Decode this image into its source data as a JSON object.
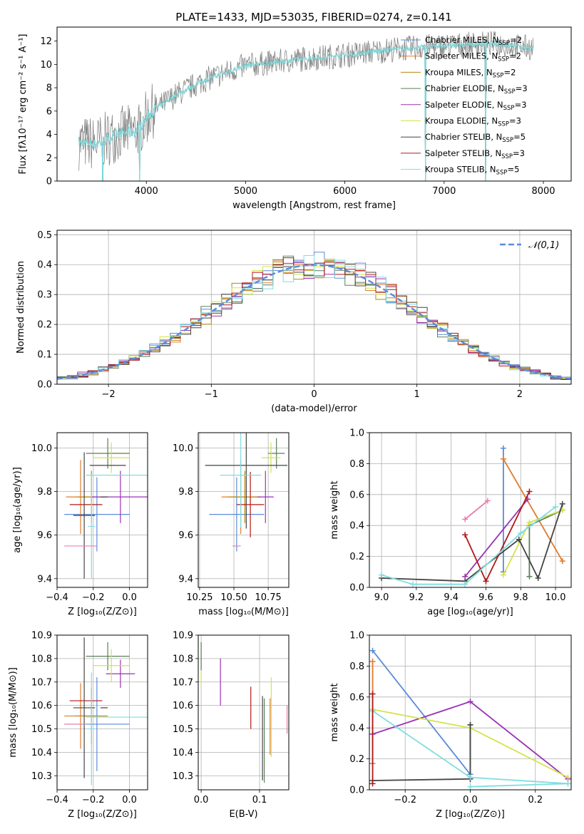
{
  "figure_title": "PLATE=1433, MJD=53035, FIBERID=0274, z=0.141",
  "legend_models": [
    {
      "label": "Chabrier MILES, N",
      "sub": "SSP",
      "suffix": "=2",
      "color": "#5b8bd9"
    },
    {
      "label": "Salpeter MILES, N",
      "sub": "SSP",
      "suffix": "=2",
      "color": "#e07b2a"
    },
    {
      "label": "Kroupa MILES, N",
      "sub": "SSP",
      "suffix": "=2",
      "color": "#b8860b"
    },
    {
      "label": "Chabrier ELODIE, N",
      "sub": "SSP",
      "suffix": "=3",
      "color": "#5a7f5a"
    },
    {
      "label": "Salpeter ELODIE, N",
      "sub": "SSP",
      "suffix": "=3",
      "color": "#9a32b5"
    },
    {
      "label": "Kroupa ELODIE, N",
      "sub": "SSP",
      "suffix": "=3",
      "color": "#d4e34a"
    },
    {
      "label": "Chabrier STELIB, N",
      "sub": "SSP",
      "suffix": "=5",
      "color": "#444444"
    },
    {
      "label": "Salpeter STELIB, N",
      "sub": "SSP",
      "suffix": "=3",
      "color": "#b01818"
    },
    {
      "label": "Kroupa STELIB, N",
      "sub": "SSP",
      "suffix": "=5",
      "color": "#7fdde0"
    }
  ],
  "chart_data": [
    {
      "id": "spectrum",
      "type": "line",
      "xlabel": "wavelength [Angstrom, rest frame]",
      "ylabel": "Flux [fλ10⁻¹⁷ erg cm⁻² s⁻¹ A⁻¹]",
      "xlim": [
        3100,
        8280
      ],
      "ylim": [
        0,
        13.2
      ],
      "xticks": [
        4000,
        5000,
        6000,
        7000,
        8000
      ],
      "yticks": [
        0,
        2,
        4,
        6,
        8,
        10,
        12
      ],
      "legend": "top-right",
      "continuum": {
        "x": [
          3320,
          3500,
          3700,
          3900,
          4050,
          4300,
          4600,
          5000,
          5500,
          6000,
          6500,
          7000,
          7500,
          7900
        ],
        "y": [
          3.3,
          3.2,
          4.0,
          4.3,
          5.9,
          7.4,
          8.7,
          9.9,
          10.4,
          10.8,
          11.3,
          11.6,
          11.8,
          11.4
        ]
      },
      "gaps": [
        3560,
        3930,
        6810,
        7420
      ]
    },
    {
      "id": "residuals",
      "type": "histogram",
      "xlabel": "(data-model)/error",
      "ylabel": "Normed distribution",
      "xlim": [
        -2.5,
        2.5
      ],
      "ylim": [
        0,
        0.515
      ],
      "xticks": [
        -2,
        -1,
        0,
        1,
        2
      ],
      "yticks": [
        0,
        0.1,
        0.2,
        0.3,
        0.4,
        0.5
      ],
      "grid": true,
      "reference": {
        "label": "𝒩(0,1)",
        "mean": 0,
        "sigma": 1,
        "style": "dashed",
        "color": "#5b8bd9"
      },
      "legend": "top-right",
      "bin_width": 0.1
    },
    {
      "id": "age-vs-Z",
      "type": "scatter",
      "xlabel": "Z [log₁₀(Z/Z⊙)]",
      "ylabel": "age  [log₁₀(age/yr)]",
      "xlim": [
        -0.4,
        0.1
      ],
      "ylim": [
        9.36,
        10.07
      ],
      "xticks": [
        -0.4,
        -0.2,
        0.0
      ],
      "yticks": [
        9.4,
        9.6,
        9.8,
        10.0
      ],
      "grid": true,
      "points": [
        {
          "x": -0.18,
          "y": 9.695,
          "xerr": 0.18,
          "yerr": 0.17,
          "color": "#5b8bd9"
        },
        {
          "x": -0.27,
          "y": 9.775,
          "xerr": 0.08,
          "yerr": 0.17,
          "color": "#e07b2a"
        },
        {
          "x": -0.21,
          "y": 9.775,
          "xerr": 0.08,
          "yerr": 0.12,
          "color": "#b8860b"
        },
        {
          "x": -0.12,
          "y": 9.975,
          "xerr": 0.12,
          "yerr": 0.07,
          "color": "#5a7f5a"
        },
        {
          "x": -0.05,
          "y": 9.775,
          "xerr": 0.16,
          "yerr": 0.12,
          "color": "#9a32b5"
        },
        {
          "x": -0.1,
          "y": 9.955,
          "xerr": 0.1,
          "yerr": 0.07,
          "color": "#d4e34a"
        },
        {
          "x": -0.25,
          "y": 9.69,
          "xerr": 0.06,
          "yerr": 0.29,
          "color": "#444444"
        },
        {
          "x": -0.14,
          "y": 9.775,
          "xerr": 0.02,
          "yerr": 0.0,
          "color": "#444444"
        },
        {
          "x": -0.24,
          "y": 9.74,
          "xerr": 0.09,
          "yerr": 0.0,
          "color": "#b01818"
        },
        {
          "x": -0.12,
          "y": 9.92,
          "xerr": 0.1,
          "yerr": 0.0,
          "color": "#444444"
        },
        {
          "x": -0.07,
          "y": 9.875,
          "xerr": 0.17,
          "yerr": 0.0,
          "color": "#7fdde0"
        },
        {
          "x": -0.21,
          "y": 9.64,
          "xerr": 0.02,
          "yerr": 0.24,
          "color": "#7fdde0"
        },
        {
          "x": -0.27,
          "y": 9.55,
          "xerr": 0.09,
          "yerr": 0.0,
          "color": "#e87fb0"
        }
      ]
    },
    {
      "id": "age-vs-mass",
      "type": "scatter",
      "xlabel": "mass [log₁₀(M/M⊙)]",
      "ylabel": "",
      "xlim": [
        10.24,
        10.9
      ],
      "ylim": [
        9.36,
        10.07
      ],
      "xticks": [
        10.25,
        10.5,
        10.75
      ],
      "yticks": [
        9.4,
        9.6,
        9.8,
        10.0
      ],
      "grid": true,
      "points": [
        {
          "x": 10.52,
          "y": 9.695,
          "xerr": 0.2,
          "yerr": 0.17,
          "color": "#5b8bd9"
        },
        {
          "x": 10.55,
          "y": 9.775,
          "xerr": 0.14,
          "yerr": 0.17,
          "color": "#e07b2a"
        },
        {
          "x": 10.58,
          "y": 9.775,
          "xerr": 0.12,
          "yerr": 0.12,
          "color": "#b8860b"
        },
        {
          "x": 10.81,
          "y": 9.975,
          "xerr": 0.06,
          "yerr": 0.07,
          "color": "#5a7f5a"
        },
        {
          "x": 10.73,
          "y": 9.775,
          "xerr": 0.06,
          "yerr": 0.12,
          "color": "#9a32b5"
        },
        {
          "x": 10.77,
          "y": 9.955,
          "xerr": 0.07,
          "yerr": 0.07,
          "color": "#d4e34a"
        },
        {
          "x": 10.59,
          "y": 9.92,
          "xerr": 0.3,
          "yerr": 0.29,
          "color": "#444444"
        },
        {
          "x": 10.62,
          "y": 9.74,
          "xerr": 0.1,
          "yerr": 0.15,
          "color": "#b01818"
        },
        {
          "x": 10.55,
          "y": 9.875,
          "xerr": 0.15,
          "yerr": 0.24,
          "color": "#7fdde0"
        },
        {
          "x": 10.52,
          "y": 9.55,
          "xerr": 0.03,
          "yerr": 0.0,
          "color": "#e87fb0"
        }
      ]
    },
    {
      "id": "mass-weight-vs-age",
      "type": "line",
      "xlabel": "age  [log₁₀(age/yr)]",
      "ylabel": "mass weight",
      "xlim": [
        8.93,
        10.09
      ],
      "ylim": [
        0,
        1.0
      ],
      "xticks": [
        9.0,
        9.2,
        9.4,
        9.6,
        9.8,
        10.0
      ],
      "yticks": [
        0.0,
        0.2,
        0.4,
        0.6,
        0.8,
        1.0
      ],
      "grid": true,
      "series": [
        {
          "color": "#5b8bd9",
          "x": [
            9.7,
            9.7
          ],
          "y": [
            0.9,
            0.1
          ]
        },
        {
          "color": "#e07b2a",
          "x": [
            9.7,
            10.04
          ],
          "y": [
            0.83,
            0.17
          ]
        },
        {
          "color": "#e87fb0",
          "x": [
            9.48,
            9.61
          ],
          "y": [
            0.44,
            0.56
          ]
        },
        {
          "color": "#5a7f5a",
          "x": [
            9.85,
            9.85,
            10.04
          ],
          "y": [
            0.07,
            0.4,
            0.5
          ]
        },
        {
          "color": "#9a32b5",
          "x": [
            9.48,
            9.84
          ],
          "y": [
            0.07,
            0.57
          ]
        },
        {
          "color": "#d4e34a",
          "x": [
            9.7,
            9.85,
            10.04
          ],
          "y": [
            0.08,
            0.42,
            0.5
          ]
        },
        {
          "color": "#444444",
          "x": [
            9.0,
            9.48,
            9.79,
            9.9,
            10.04
          ],
          "y": [
            0.06,
            0.04,
            0.31,
            0.06,
            0.54
          ]
        },
        {
          "color": "#b01818",
          "x": [
            9.48,
            9.6,
            9.85
          ],
          "y": [
            0.34,
            0.04,
            0.62
          ]
        },
        {
          "color": "#7fdde0",
          "x": [
            9.0,
            9.18,
            9.48,
            9.8,
            10.0
          ],
          "y": [
            0.08,
            0.02,
            0.02,
            0.35,
            0.52
          ]
        }
      ]
    },
    {
      "id": "mass-vs-Z",
      "type": "scatter",
      "xlabel": "Z [log₁₀(Z/Z⊙)]",
      "ylabel": "mass [log₁₀(M/M⊙)]",
      "xlim": [
        -0.4,
        0.1
      ],
      "ylim": [
        10.24,
        10.9
      ],
      "xticks": [
        -0.4,
        -0.2,
        0.0
      ],
      "yticks": [
        10.3,
        10.4,
        10.5,
        10.6,
        10.7,
        10.8,
        10.9
      ],
      "grid": true,
      "points": [
        {
          "x": -0.18,
          "y": 10.52,
          "xerr": 0.18,
          "yerr": 0.2,
          "color": "#5b8bd9"
        },
        {
          "x": -0.27,
          "y": 10.555,
          "xerr": 0.09,
          "yerr": 0.14,
          "color": "#e07b2a"
        },
        {
          "x": -0.21,
          "y": 10.555,
          "xerr": 0.09,
          "yerr": 0.12,
          "color": "#b8860b"
        },
        {
          "x": -0.12,
          "y": 10.81,
          "xerr": 0.12,
          "yerr": 0.06,
          "color": "#5a7f5a"
        },
        {
          "x": -0.05,
          "y": 10.735,
          "xerr": 0.08,
          "yerr": 0.06,
          "color": "#9a32b5"
        },
        {
          "x": -0.1,
          "y": 10.77,
          "xerr": 0.1,
          "yerr": 0.07,
          "color": "#d4e34a"
        },
        {
          "x": -0.25,
          "y": 10.59,
          "xerr": 0.06,
          "yerr": 0.3,
          "color": "#444444"
        },
        {
          "x": -0.14,
          "y": 10.59,
          "xerr": 0.02,
          "yerr": 0.0,
          "color": "#444444"
        },
        {
          "x": -0.24,
          "y": 10.62,
          "xerr": 0.09,
          "yerr": 0.0,
          "color": "#b01818"
        },
        {
          "x": -0.07,
          "y": 10.55,
          "xerr": 0.17,
          "yerr": 0.0,
          "color": "#7fdde0"
        },
        {
          "x": -0.21,
          "y": 10.5,
          "xerr": 0.02,
          "yerr": 0.24,
          "color": "#7fdde0"
        },
        {
          "x": -0.3,
          "y": 10.52,
          "xerr": 0.06,
          "yerr": 0.0,
          "color": "#e87fb0"
        }
      ]
    },
    {
      "id": "mass-vs-EBV",
      "type": "scatter",
      "xlabel": "E(B-V)",
      "ylabel": "",
      "xlim": [
        -0.005,
        0.15
      ],
      "ylim": [
        10.24,
        10.9
      ],
      "xticks": [
        0.0,
        0.1
      ],
      "yticks": [
        10.3,
        10.4,
        10.5,
        10.6,
        10.7,
        10.8,
        10.9
      ],
      "grid": true,
      "points": [
        {
          "x": 0.0,
          "y": 10.78,
          "xerr": 0.0,
          "yerr": 0.09,
          "color": "#d4e34a"
        },
        {
          "x": 0.0,
          "y": 10.81,
          "xerr": 0.0,
          "yerr": 0.06,
          "color": "#5a7f5a"
        },
        {
          "x": 0.033,
          "y": 10.7,
          "xerr": 0.0,
          "yerr": 0.1,
          "color": "#9a32b5"
        },
        {
          "x": 0.085,
          "y": 10.59,
          "xerr": 0.0,
          "yerr": 0.09,
          "color": "#b01818"
        },
        {
          "x": 0.105,
          "y": 10.46,
          "xerr": 0.0,
          "yerr": 0.18,
          "color": "#444444"
        },
        {
          "x": 0.108,
          "y": 10.45,
          "xerr": 0.0,
          "yerr": 0.18,
          "color": "#5a7f5a"
        },
        {
          "x": 0.118,
          "y": 10.51,
          "xerr": 0.0,
          "yerr": 0.12,
          "color": "#e07b2a"
        },
        {
          "x": 0.12,
          "y": 10.55,
          "xerr": 0.0,
          "yerr": 0.17,
          "color": "#d4e34a"
        },
        {
          "x": 0.147,
          "y": 10.54,
          "xerr": 0.0,
          "yerr": 0.06,
          "color": "#e87fb0"
        }
      ]
    },
    {
      "id": "mass-weight-vs-Z",
      "type": "line",
      "xlabel": "Z [log₁₀(Z/Z⊙)]",
      "ylabel": "mass weight",
      "xlim": [
        -0.31,
        0.31
      ],
      "ylim": [
        0,
        1.0
      ],
      "xticks": [
        -0.2,
        0.0,
        0.2
      ],
      "yticks": [
        0.0,
        0.2,
        0.4,
        0.6,
        0.8,
        1.0
      ],
      "grid": true,
      "series": [
        {
          "color": "#5b8bd9",
          "x": [
            -0.3,
            0.0,
            0.0
          ],
          "y": [
            0.9,
            0.1,
            0.08
          ]
        },
        {
          "color": "#e07b2a",
          "x": [
            -0.3,
            -0.3
          ],
          "y": [
            0.83,
            0.17
          ]
        },
        {
          "color": "#9a32b5",
          "x": [
            -0.3,
            0.0,
            0.3
          ],
          "y": [
            0.36,
            0.57,
            0.07
          ]
        },
        {
          "color": "#d4e34a",
          "x": [
            -0.3,
            0.0,
            0.3
          ],
          "y": [
            0.52,
            0.4,
            0.08
          ]
        },
        {
          "color": "#5a7f5a",
          "x": [
            0.0,
            0.0
          ],
          "y": [
            0.42,
            0.07
          ]
        },
        {
          "color": "#444444",
          "x": [
            -0.3,
            0.0,
            0.0
          ],
          "y": [
            0.06,
            0.07,
            0.42
          ]
        },
        {
          "color": "#7fdde0",
          "x": [
            -0.3,
            0.0,
            0.3
          ],
          "y": [
            0.51,
            0.08,
            0.04
          ]
        },
        {
          "color": "#b01818",
          "x": [
            -0.3,
            -0.3
          ],
          "y": [
            0.62,
            0.04
          ]
        },
        {
          "color": "#7fdde0",
          "x": [
            0.0,
            0.3
          ],
          "y": [
            0.02,
            0.04
          ]
        }
      ]
    }
  ]
}
